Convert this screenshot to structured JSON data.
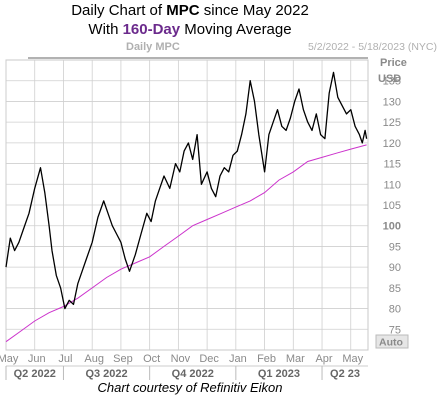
{
  "title": {
    "line1_prefix": "Daily Chart of ",
    "line1_ticker": "MPC",
    "line1_suffix": " since May 2022",
    "line2_prefix": "With ",
    "line2_highlight": "160-Day",
    "line2_suffix": " Moving Average"
  },
  "header": {
    "inner_label": "Daily MPC",
    "date_range": "5/2/2022 - 5/18/2023 (NYC)"
  },
  "axis_labels": {
    "price": "Price",
    "currency": "USD",
    "auto": "Auto"
  },
  "credit": "Chart courtesy of Refinitiv Eikon",
  "colors": {
    "price_line": "#000000",
    "moving_average": "#cc33cc",
    "grid": "#cfcfcf",
    "axis_text": "#8a8a8a",
    "highlight_text": "#6b2a8c"
  },
  "chart_data": {
    "type": "line",
    "title": "Daily Chart of MPC since May 2022",
    "subtitle": "With 160-Day Moving Average",
    "ylabel": "Price USD",
    "ylim": [
      70,
      140
    ],
    "y_ticks": [
      75,
      80,
      85,
      90,
      95,
      100,
      105,
      110,
      115,
      120,
      125,
      130,
      135
    ],
    "x_range": [
      0,
      12.6
    ],
    "month_ticks": [
      "May",
      "Jun",
      "Jul",
      "Aug",
      "Sep",
      "Oct",
      "Nov",
      "Dec",
      "Jan",
      "Feb",
      "Mar",
      "Apr",
      "May"
    ],
    "quarter_ticks": [
      {
        "label": "Q2 2022",
        "start": 0,
        "end": 2
      },
      {
        "label": "Q3 2022",
        "start": 2,
        "end": 5
      },
      {
        "label": "Q4 2022",
        "start": 5,
        "end": 8
      },
      {
        "label": "Q1 2023",
        "start": 8,
        "end": 11
      },
      {
        "label": "Q2 23",
        "start": 11,
        "end": 12.6
      }
    ],
    "grid": true,
    "series": [
      {
        "name": "MPC",
        "x": [
          0,
          0.15,
          0.3,
          0.45,
          0.6,
          0.8,
          1.0,
          1.2,
          1.35,
          1.5,
          1.6,
          1.75,
          1.9,
          2.05,
          2.2,
          2.35,
          2.5,
          2.65,
          2.8,
          3.0,
          3.2,
          3.4,
          3.55,
          3.7,
          3.85,
          4.0,
          4.15,
          4.3,
          4.5,
          4.7,
          4.9,
          5.05,
          5.2,
          5.35,
          5.5,
          5.7,
          5.9,
          6.05,
          6.2,
          6.35,
          6.5,
          6.65,
          6.8,
          7.0,
          7.15,
          7.3,
          7.45,
          7.6,
          7.75,
          7.9,
          8.05,
          8.2,
          8.35,
          8.5,
          8.65,
          8.8,
          9.0,
          9.15,
          9.3,
          9.45,
          9.6,
          9.75,
          9.9,
          10.05,
          10.2,
          10.35,
          10.5,
          10.65,
          10.8,
          10.95,
          11.1,
          11.25,
          11.4,
          11.55,
          11.7,
          11.85,
          12.0,
          12.15,
          12.3,
          12.4,
          12.5,
          12.55
        ],
        "values": [
          90,
          97,
          94,
          96,
          99,
          103,
          109,
          114,
          108,
          100,
          94,
          88,
          85,
          80,
          82,
          81,
          86,
          89,
          92,
          96,
          102,
          106,
          103,
          100,
          98,
          96,
          92,
          89,
          93,
          98,
          103,
          101,
          106,
          109,
          112,
          109,
          115,
          113,
          118,
          120,
          116,
          122,
          110,
          113,
          109,
          107,
          112,
          114,
          113,
          117,
          118,
          122,
          127,
          135,
          130,
          122,
          113,
          122,
          125,
          128,
          124,
          123,
          126,
          130,
          133,
          128,
          125,
          123,
          127,
          122,
          121,
          132,
          137,
          131,
          129,
          127,
          128,
          124,
          122,
          120,
          123,
          121
        ]
      },
      {
        "name": "160-Day",
        "x": [
          0,
          0.5,
          1.0,
          1.5,
          2.0,
          2.5,
          3.0,
          3.5,
          4.0,
          4.5,
          5.0,
          5.5,
          6.0,
          6.5,
          7.0,
          7.5,
          8.0,
          8.5,
          9.0,
          9.5,
          10.0,
          10.5,
          11.0,
          11.5,
          12.0,
          12.55
        ],
        "values": [
          72,
          74.5,
          77,
          79,
          80.5,
          82.5,
          85,
          87.5,
          89.5,
          91,
          92.5,
          95,
          97.5,
          100,
          101.5,
          103,
          104.5,
          106,
          108,
          111,
          113,
          115.5,
          116.5,
          117.5,
          118.5,
          119.5
        ]
      }
    ]
  }
}
